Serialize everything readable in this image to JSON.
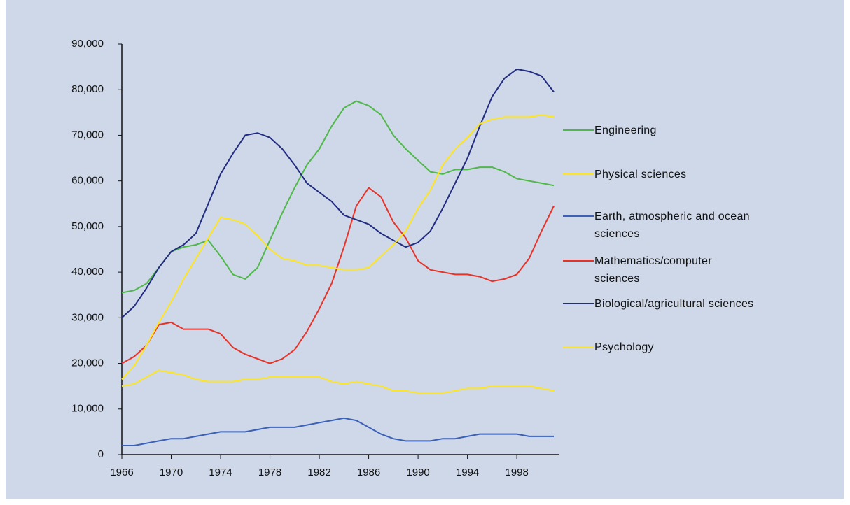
{
  "chart_data": {
    "type": "line",
    "x": [
      1966,
      1967,
      1968,
      1969,
      1970,
      1971,
      1972,
      1973,
      1974,
      1975,
      1976,
      1977,
      1978,
      1979,
      1980,
      1981,
      1982,
      1983,
      1984,
      1985,
      1986,
      1987,
      1988,
      1989,
      1990,
      1991,
      1992,
      1993,
      1994,
      1995,
      1996,
      1997,
      1998,
      1999,
      2000,
      2001
    ],
    "xlim": [
      1966,
      2001
    ],
    "xticks": [
      1966,
      1970,
      1974,
      1978,
      1982,
      1986,
      1990,
      1994,
      1998
    ],
    "ylim": [
      0,
      90000
    ],
    "yticks": [
      0,
      {
        "value": 10000,
        "label": "10,000"
      },
      {
        "value": 20000,
        "label": "20,000"
      },
      {
        "value": 30000,
        "label": "30,000"
      },
      {
        "value": 40000,
        "label": "40,000"
      },
      {
        "value": 50000,
        "label": "50,000"
      },
      {
        "value": 60000,
        "label": "60,000"
      },
      {
        "value": 70000,
        "label": "70,000"
      },
      {
        "value": 80000,
        "label": "80,000"
      },
      {
        "value": 90000,
        "label": "90,000"
      }
    ],
    "grid": false,
    "series": [
      {
        "name": "Engineering",
        "color": "#4fb848",
        "values": [
          35500,
          36000,
          37500,
          41000,
          44500,
          45500,
          46000,
          47000,
          43500,
          39500,
          38500,
          41000,
          47000,
          53000,
          58500,
          63500,
          67000,
          72000,
          76000,
          77500,
          76500,
          74500,
          70000,
          67000,
          64500,
          62000,
          61500,
          62500,
          62500,
          63000,
          63000,
          62000,
          60500,
          60000,
          59500,
          59000
        ]
      },
      {
        "name": "Physical sciences",
        "color": "#ffe51c",
        "values": [
          15000,
          15500,
          17000,
          18500,
          18000,
          17500,
          16500,
          16000,
          16000,
          16000,
          16500,
          16500,
          17000,
          17000,
          17000,
          17000,
          17000,
          16000,
          15500,
          16000,
          15500,
          15000,
          14000,
          14000,
          13500,
          13500,
          13500,
          14000,
          14500,
          14500,
          15000,
          15000,
          15000,
          15000,
          14500,
          14000
        ]
      },
      {
        "name": "Earth, atmospheric and ocean sciences",
        "color": "#3a60b8",
        "values": [
          2000,
          2000,
          2500,
          3000,
          3500,
          3500,
          4000,
          4500,
          5000,
          5000,
          5000,
          5500,
          6000,
          6000,
          6000,
          6500,
          7000,
          7500,
          8000,
          7500,
          6000,
          4500,
          3500,
          3000,
          3000,
          3000,
          3500,
          3500,
          4000,
          4500,
          4500,
          4500,
          4500,
          4000,
          4000,
          4000
        ]
      },
      {
        "name": "Mathematics/computer sciences",
        "color": "#e83228",
        "values": [
          20000,
          21500,
          24000,
          28500,
          29000,
          27500,
          27500,
          27500,
          26500,
          23500,
          22000,
          21000,
          20000,
          21000,
          23000,
          27000,
          32000,
          37500,
          45500,
          54500,
          58500,
          56500,
          51000,
          47500,
          42500,
          40500,
          40000,
          39500,
          39500,
          39000,
          38000,
          38500,
          39500,
          43000,
          49000,
          54500
        ]
      },
      {
        "name": "Biological/agricultural sciences",
        "color": "#222c80",
        "values": [
          30000,
          32500,
          36500,
          41000,
          44500,
          46000,
          48500,
          55000,
          61500,
          66000,
          70000,
          70500,
          69500,
          67000,
          63500,
          59500,
          57500,
          55500,
          52500,
          51500,
          50500,
          48500,
          47000,
          45500,
          46500,
          49000,
          54000,
          59500,
          65000,
          72000,
          78500,
          82500,
          84500,
          84000,
          83000,
          79500
        ]
      },
      {
        "name": "Psychology",
        "color": "#ffe51c",
        "values": [
          16500,
          19500,
          24000,
          29000,
          33500,
          38500,
          43000,
          47500,
          52000,
          51500,
          50500,
          48000,
          45000,
          43000,
          42500,
          41500,
          41500,
          41000,
          40500,
          40500,
          41000,
          43500,
          46000,
          49000,
          54000,
          58000,
          63500,
          67000,
          69500,
          72500,
          73500,
          74000,
          74000,
          74000,
          74500,
          74000
        ]
      }
    ]
  }
}
